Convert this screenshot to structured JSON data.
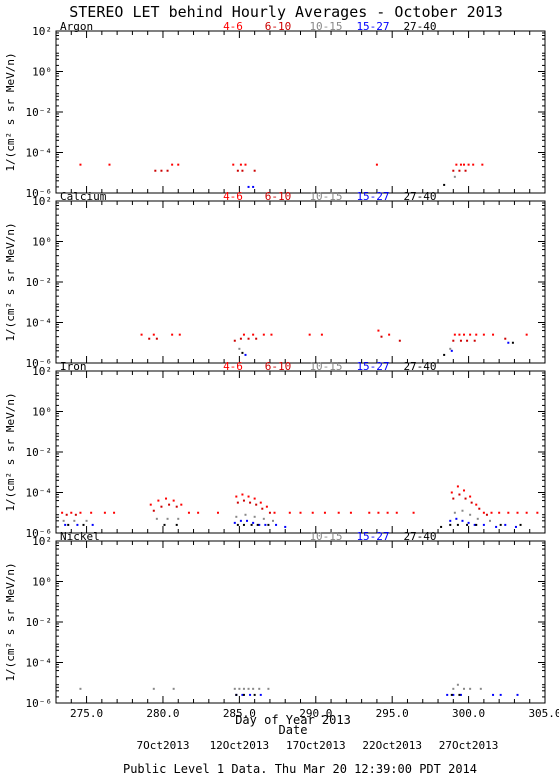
{
  "page": {
    "title": "STEREO LET behind Hourly Averages - October 2013",
    "footer": "Public Level 1 Data. Thu Mar 20 12:39:00 PDT 2014"
  },
  "colors": {
    "4-6": "#ff0000",
    "6-10": "#cc0000",
    "10-15": "#888888",
    "15-27": "#0000ff",
    "27-40": "#000000"
  },
  "chart_data": [
    {
      "type": "scatter",
      "panel_label": "Argon",
      "ylabel": "1/(cm² s sr MeV/n)",
      "legend": [
        "4-6",
        "6-10",
        "10-15",
        "15-27",
        "27-40"
      ],
      "xlim": [
        273,
        305
      ],
      "ylim_log10": [
        -6,
        2
      ],
      "y_ticks": [
        "10²",
        "10⁰",
        "10⁻²",
        "10⁻⁴",
        "10⁻⁶"
      ],
      "series": [
        {
          "name": "4-6",
          "x": [
            274.6,
            276.5,
            280.6,
            281.0,
            284.6,
            285.1,
            285.4,
            294.0,
            299.2,
            299.5,
            299.7,
            300.0,
            300.3,
            300.9
          ],
          "y": [
            -4.6,
            -4.6,
            -4.6,
            -4.6,
            -4.6,
            -4.6,
            -4.6,
            -4.6,
            -4.6,
            -4.6,
            -4.6,
            -4.6,
            -4.6,
            -4.6
          ]
        },
        {
          "name": "6-10",
          "x": [
            279.5,
            279.9,
            280.3,
            284.9,
            285.2,
            286.0,
            299.0,
            299.4,
            299.8
          ],
          "y": [
            -4.9,
            -4.9,
            -4.9,
            -4.9,
            -4.9,
            -4.9,
            -4.9,
            -4.9,
            -4.9
          ]
        },
        {
          "name": "10-15",
          "x": [
            299.1
          ],
          "y": [
            -5.2
          ]
        },
        {
          "name": "15-27",
          "x": [
            285.6,
            285.9
          ],
          "y": [
            -5.7,
            -5.7
          ]
        },
        {
          "name": "27-40",
          "x": [
            298.4
          ],
          "y": [
            -5.6
          ]
        }
      ]
    },
    {
      "type": "scatter",
      "panel_label": "Calcium",
      "ylabel": "1/(cm² s sr MeV/n)",
      "legend": [
        "4-6",
        "6-10",
        "10-15",
        "15-27",
        "27-40"
      ],
      "xlim": [
        273,
        305
      ],
      "ylim_log10": [
        -6,
        2
      ],
      "y_ticks": [
        "10²",
        "10⁰",
        "10⁻²",
        "10⁻⁴",
        "10⁻⁶"
      ],
      "series": [
        {
          "name": "4-6",
          "x": [
            278.6,
            279.4,
            280.6,
            281.1,
            285.3,
            285.9,
            286.6,
            287.1,
            289.6,
            290.4,
            294.1,
            294.8,
            299.1,
            299.4,
            299.7,
            300.1,
            300.5,
            301.0,
            301.6,
            303.8
          ],
          "y": [
            -4.6,
            -4.6,
            -4.6,
            -4.6,
            -4.6,
            -4.6,
            -4.6,
            -4.6,
            -4.6,
            -4.6,
            -4.4,
            -4.6,
            -4.6,
            -4.6,
            -4.6,
            -4.6,
            -4.6,
            -4.6,
            -4.6,
            -4.6
          ]
        },
        {
          "name": "6-10",
          "x": [
            279.1,
            279.6,
            284.7,
            285.1,
            285.6,
            286.1,
            294.3,
            295.5,
            299.0,
            299.5,
            299.9,
            300.4,
            302.4
          ],
          "y": [
            -4.8,
            -4.8,
            -4.9,
            -4.8,
            -4.8,
            -4.8,
            -4.7,
            -4.9,
            -4.9,
            -4.9,
            -4.9,
            -4.9,
            -4.8
          ]
        },
        {
          "name": "10-15",
          "x": [
            285.0,
            298.8
          ],
          "y": [
            -5.3,
            -5.3
          ]
        },
        {
          "name": "15-27",
          "x": [
            285.4,
            298.9,
            302.6
          ],
          "y": [
            -5.6,
            -5.4,
            -5.0
          ]
        },
        {
          "name": "27-40",
          "x": [
            285.2,
            298.4,
            302.9
          ],
          "y": [
            -5.5,
            -5.6,
            -5.0
          ]
        }
      ]
    },
    {
      "type": "scatter",
      "panel_label": "Iron",
      "ylabel": "1/(cm² s sr MeV/n)",
      "legend": [
        "4-6",
        "6-10",
        "10-15",
        "15-27",
        "27-40"
      ],
      "xlim": [
        273,
        305
      ],
      "ylim_log10": [
        -6,
        2
      ],
      "y_ticks": [
        "10²",
        "10⁰",
        "10⁻²",
        "10⁻⁴",
        "10⁻⁶"
      ],
      "series": [
        {
          "name": "4-6",
          "x": [
            273.4,
            274.0,
            274.6,
            275.3,
            276.2,
            276.8,
            279.2,
            279.7,
            280.2,
            280.7,
            281.2,
            281.7,
            282.3,
            283.6,
            284.8,
            285.2,
            285.6,
            286.0,
            286.4,
            286.8,
            287.3,
            288.3,
            289.0,
            289.8,
            290.6,
            291.5,
            292.3,
            293.5,
            294.1,
            294.7,
            295.3,
            296.4,
            298.9,
            299.3,
            299.7,
            300.1,
            300.5,
            301.0,
            301.5,
            302.0,
            302.6,
            303.2,
            303.8,
            304.5
          ],
          "y": [
            -5.0,
            -5.0,
            -5.0,
            -5.0,
            -5.0,
            -5.0,
            -4.6,
            -4.4,
            -4.3,
            -4.4,
            -4.6,
            -5.0,
            -5.0,
            -5.0,
            -4.2,
            -4.1,
            -4.2,
            -4.3,
            -4.5,
            -4.7,
            -5.0,
            -5.0,
            -5.0,
            -5.0,
            -5.0,
            -5.0,
            -5.0,
            -5.0,
            -5.0,
            -5.0,
            -5.0,
            -5.0,
            -4.0,
            -3.7,
            -3.9,
            -4.2,
            -4.6,
            -5.0,
            -5.0,
            -5.0,
            -5.0,
            -5.0,
            -5.0,
            -5.0
          ]
        },
        {
          "name": "6-10",
          "x": [
            273.7,
            274.3,
            279.4,
            279.9,
            280.4,
            280.9,
            284.9,
            285.3,
            285.7,
            286.1,
            286.5,
            287.0,
            299.0,
            299.4,
            299.8,
            300.2,
            300.7,
            301.2
          ],
          "y": [
            -5.1,
            -5.1,
            -4.9,
            -4.7,
            -4.6,
            -4.7,
            -4.5,
            -4.4,
            -4.5,
            -4.6,
            -4.8,
            -5.0,
            -4.3,
            -4.1,
            -4.3,
            -4.5,
            -4.8,
            -5.1
          ]
        },
        {
          "name": "10-15",
          "x": [
            273.5,
            274.2,
            275.0,
            279.6,
            280.3,
            281.0,
            284.8,
            285.4,
            286.0,
            286.6,
            287.2,
            299.1,
            299.6,
            300.1,
            300.6,
            301.4
          ],
          "y": [
            -5.4,
            -5.4,
            -5.4,
            -5.3,
            -5.3,
            -5.3,
            -5.2,
            -5.1,
            -5.2,
            -5.3,
            -5.4,
            -5.0,
            -4.9,
            -5.1,
            -5.3,
            -5.4
          ]
        },
        {
          "name": "15-27",
          "x": [
            273.6,
            274.4,
            275.4,
            284.7,
            285.1,
            285.5,
            285.9,
            286.3,
            286.7,
            287.4,
            288.0,
            298.8,
            299.2,
            299.6,
            300.0,
            300.4,
            301.0,
            301.8,
            302.4,
            303.1
          ],
          "y": [
            -5.6,
            -5.6,
            -5.6,
            -5.5,
            -5.4,
            -5.4,
            -5.5,
            -5.6,
            -5.6,
            -5.6,
            -5.7,
            -5.4,
            -5.3,
            -5.4,
            -5.5,
            -5.6,
            -5.6,
            -5.7,
            -5.6,
            -5.7
          ]
        },
        {
          "name": "27-40",
          "x": [
            273.8,
            274.8,
            280.1,
            280.9,
            284.9,
            285.3,
            285.8,
            286.2,
            286.9,
            298.2,
            298.8,
            299.3,
            299.9,
            300.5,
            302.1,
            303.4
          ],
          "y": [
            -5.6,
            -5.6,
            -5.6,
            -5.6,
            -5.6,
            -5.6,
            -5.6,
            -5.6,
            -5.6,
            -5.7,
            -5.6,
            -5.6,
            -5.6,
            -5.6,
            -5.6,
            -5.6
          ]
        }
      ]
    },
    {
      "type": "scatter",
      "panel_label": "Nickel",
      "ylabel": "1/(cm² s sr MeV/n)",
      "legend": [
        "10-15",
        "15-27",
        "27-40"
      ],
      "xlim": [
        273,
        305
      ],
      "ylim_log10": [
        -6,
        2
      ],
      "y_ticks": [
        "10²",
        "10⁰",
        "10⁻²",
        "10⁻⁴",
        "10⁻⁶"
      ],
      "series": [
        {
          "name": "10-15",
          "x": [
            274.6,
            279.4,
            280.7,
            284.7,
            285.0,
            285.3,
            285.6,
            285.9,
            286.3,
            286.9,
            299.0,
            299.3,
            299.7,
            300.1,
            300.8
          ],
          "y": [
            -5.3,
            -5.3,
            -5.3,
            -5.3,
            -5.3,
            -5.3,
            -5.3,
            -5.3,
            -5.3,
            -5.3,
            -5.3,
            -5.1,
            -5.3,
            -5.3,
            -5.3
          ]
        },
        {
          "name": "15-27",
          "x": [
            284.8,
            285.2,
            285.7,
            286.4,
            298.6,
            299.0,
            299.5,
            301.6,
            302.1,
            303.2
          ],
          "y": [
            -5.6,
            -5.6,
            -5.6,
            -5.6,
            -5.6,
            -5.6,
            -5.6,
            -5.6,
            -5.6,
            -5.6
          ]
        },
        {
          "name": "27-40",
          "x": [
            284.8,
            285.3,
            286.0,
            298.9,
            299.4
          ],
          "y": [
            -5.6,
            -5.6,
            -5.6,
            -5.6,
            -5.6
          ]
        }
      ]
    }
  ],
  "x_axis": {
    "label": "Day of Year 2013",
    "ticks": [
      "275.0",
      "280.0",
      "285.0",
      "290.0",
      "295.0",
      "300.0",
      "305.0"
    ],
    "tick_values": [
      275,
      280,
      285,
      290,
      295,
      300,
      305
    ]
  },
  "date_axis": {
    "label": "Date",
    "ticks": [
      "7Oct2013",
      "12Oct2013",
      "17Oct2013",
      "22Oct2013",
      "27Oct2013"
    ],
    "tick_values": [
      280,
      285,
      290,
      295,
      300
    ]
  }
}
